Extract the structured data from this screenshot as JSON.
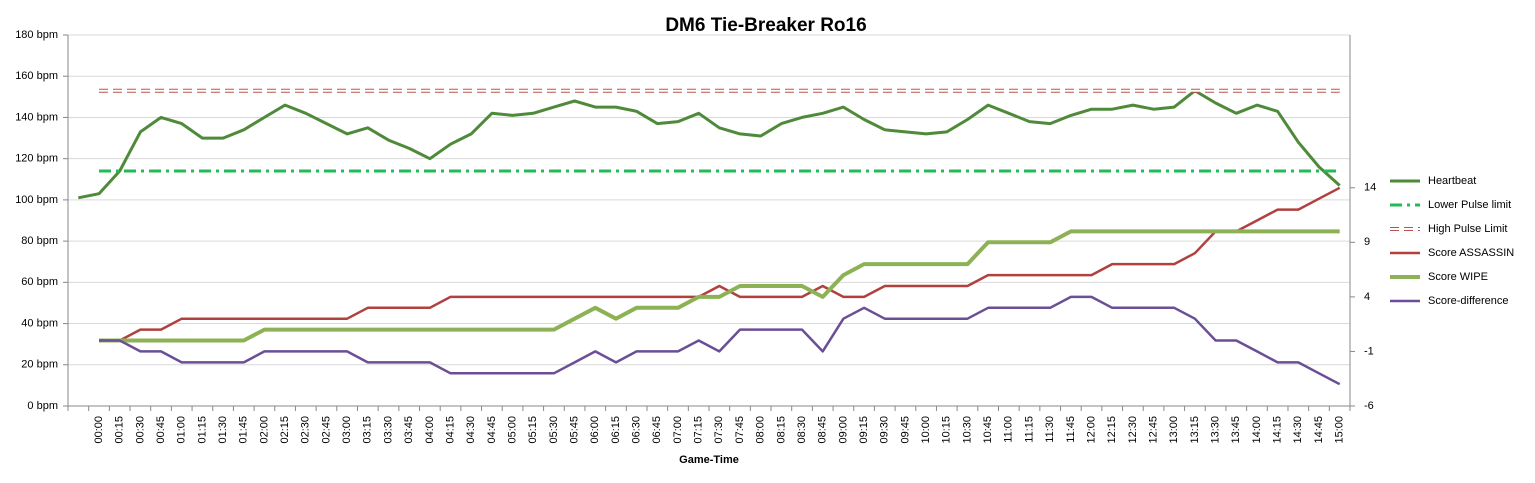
{
  "chart_data": {
    "type": "line",
    "title": "DM6 Tie-Breaker Ro16",
    "xlabel": "Game-Time",
    "categories": [
      null,
      "00:00",
      "00:15",
      "00:30",
      "00:45",
      "01:00",
      "01:15",
      "01:30",
      "01:45",
      "02:00",
      "02:15",
      "02:30",
      "02:45",
      "03:00",
      "03:15",
      "03:30",
      "03:45",
      "04:00",
      "04:15",
      "04:30",
      "04:45",
      "05:00",
      "05:15",
      "05:30",
      "05:45",
      "06:00",
      "06:15",
      "06:30",
      "06:45",
      "07:00",
      "07:15",
      "07:30",
      "07:45",
      "08:00",
      "08:15",
      "08:30",
      "08:45",
      "09:00",
      "09:15",
      "09:30",
      "09:45",
      "10:00",
      "10:15",
      "10:30",
      "10:45",
      "11:00",
      "11:15",
      "11:30",
      "11:45",
      "12:00",
      "12:15",
      "12:30",
      "12:45",
      "13:00",
      "13:15",
      "13:30",
      "13:45",
      "14:00",
      "14:15",
      "14:30",
      "14:45",
      "15:00"
    ],
    "series": [
      {
        "name": "Heartbeat",
        "color": "#4f8a3a",
        "width": 3,
        "dash": "solid",
        "values": [
          101,
          103,
          114,
          133,
          140,
          137,
          130,
          130,
          134,
          140,
          146,
          142,
          137,
          132,
          135,
          129,
          125,
          120,
          127,
          132,
          142,
          141,
          142,
          145,
          148,
          145,
          145,
          143,
          137,
          138,
          142,
          135,
          132,
          131,
          137,
          140,
          142,
          145,
          139,
          134,
          133,
          132,
          133,
          139,
          146,
          142,
          138,
          137,
          141,
          144,
          144,
          146,
          144,
          145,
          153,
          147,
          142,
          146,
          143,
          128,
          116,
          107
        ]
      },
      {
        "name": "Lower Pulse limit",
        "color": "#22bb55",
        "width": 3,
        "dash": "dashdot",
        "values": [
          null,
          114,
          114,
          114,
          114,
          114,
          114,
          114,
          114,
          114,
          114,
          114,
          114,
          114,
          114,
          114,
          114,
          114,
          114,
          114,
          114,
          114,
          114,
          114,
          114,
          114,
          114,
          114,
          114,
          114,
          114,
          114,
          114,
          114,
          114,
          114,
          114,
          114,
          114,
          114,
          114,
          114,
          114,
          114,
          114,
          114,
          114,
          114,
          114,
          114,
          114,
          114,
          114,
          114,
          114,
          114,
          114,
          114,
          114,
          114,
          114,
          114
        ]
      },
      {
        "name": "High Pulse Limit",
        "color": "#c0504d",
        "width": 4,
        "dash": "hollow",
        "values": [
          null,
          153,
          153,
          153,
          153,
          153,
          153,
          153,
          153,
          153,
          153,
          153,
          153,
          153,
          153,
          153,
          153,
          153,
          153,
          153,
          153,
          153,
          153,
          153,
          153,
          153,
          153,
          153,
          153,
          153,
          153,
          153,
          153,
          153,
          153,
          153,
          153,
          153,
          153,
          153,
          153,
          153,
          153,
          153,
          153,
          153,
          153,
          153,
          153,
          153,
          153,
          153,
          153,
          153,
          153,
          153,
          153,
          153,
          153,
          153,
          153,
          153
        ]
      },
      {
        "name": "Score ASSASSIN",
        "color": "#b0413e",
        "width": 2.5,
        "dash": "solid",
        "axis": "y2",
        "values": [
          null,
          0,
          0,
          1,
          1,
          2,
          2,
          2,
          2,
          2,
          2,
          2,
          2,
          2,
          3,
          3,
          3,
          3,
          4,
          4,
          4,
          4,
          4,
          4,
          4,
          4,
          4,
          4,
          4,
          4,
          4,
          5,
          4,
          4,
          4,
          4,
          5,
          4,
          4,
          5,
          5,
          5,
          5,
          5,
          6,
          6,
          6,
          6,
          6,
          6,
          7,
          7,
          7,
          7,
          8,
          10,
          10,
          11,
          12,
          12,
          13,
          14
        ]
      },
      {
        "name": "Score WIPE",
        "color": "#8db255",
        "width": 4,
        "dash": "solid",
        "axis": "y2",
        "values": [
          null,
          0,
          0,
          0,
          0,
          0,
          0,
          0,
          0,
          1,
          1,
          1,
          1,
          1,
          1,
          1,
          1,
          1,
          1,
          1,
          1,
          1,
          1,
          1,
          2,
          3,
          2,
          3,
          3,
          3,
          4,
          4,
          5,
          5,
          5,
          5,
          4,
          6,
          7,
          7,
          7,
          7,
          7,
          7,
          9,
          9,
          9,
          9,
          10,
          10,
          10,
          10,
          10,
          10,
          10,
          10,
          10,
          10,
          10,
          10,
          10,
          10
        ]
      },
      {
        "name": "Score-difference",
        "color": "#6b4f96",
        "width": 2.5,
        "dash": "solid",
        "axis": "y2",
        "values": [
          null,
          0,
          0,
          -1,
          -1,
          -2,
          -2,
          -2,
          -2,
          -1,
          -1,
          -1,
          -1,
          -1,
          -2,
          -2,
          -2,
          -2,
          -3,
          -3,
          -3,
          -3,
          -3,
          -3,
          -2,
          -1,
          -2,
          -1,
          -1,
          -1,
          0,
          -1,
          1,
          1,
          1,
          1,
          -1,
          2,
          3,
          2,
          2,
          2,
          2,
          2,
          3,
          3,
          3,
          3,
          4,
          4,
          3,
          3,
          3,
          3,
          2,
          0,
          0,
          -1,
          -2,
          -2,
          -3,
          -4
        ]
      }
    ],
    "ylim": [
      0,
      180
    ],
    "yticks": [
      {
        "value": 0,
        "label": "0 bpm"
      },
      {
        "value": 20,
        "label": "20 bpm"
      },
      {
        "value": 40,
        "label": "40 bpm"
      },
      {
        "value": 60,
        "label": "60 bpm"
      },
      {
        "value": 80,
        "label": "80 bpm"
      },
      {
        "value": 100,
        "label": "100 bpm"
      },
      {
        "value": 120,
        "label": "120 bpm"
      },
      {
        "value": 140,
        "label": "140 bpm"
      },
      {
        "value": 160,
        "label": "160 bpm"
      },
      {
        "value": 180,
        "label": "180 bpm"
      }
    ],
    "y2lim": [
      -6,
      28
    ],
    "y2ticks": [
      -6,
      -1,
      4,
      9,
      14
    ],
    "grid": true,
    "legend": "right"
  }
}
